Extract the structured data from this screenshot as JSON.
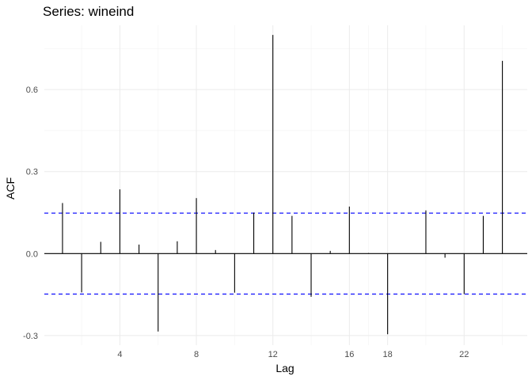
{
  "chart_data": {
    "type": "bar",
    "title": "Series: wineind",
    "xlabel": "Lag",
    "ylabel": "ACF",
    "x": [
      1,
      2,
      3,
      4,
      5,
      6,
      7,
      8,
      9,
      10,
      11,
      12,
      13,
      14,
      15,
      16,
      17,
      18,
      19,
      20,
      21,
      22,
      23,
      24
    ],
    "values": [
      0.185,
      -0.142,
      0.043,
      0.235,
      0.033,
      -0.285,
      0.045,
      0.203,
      0.013,
      -0.143,
      0.15,
      0.8,
      0.138,
      -0.158,
      0.01,
      0.172,
      0.002,
      -0.295,
      0.0,
      0.158,
      -0.015,
      -0.148,
      0.138,
      0.705
    ],
    "ci": 0.148,
    "xticks": [
      4,
      8,
      12,
      16,
      18,
      22
    ],
    "yticks": [
      -0.3,
      0.0,
      0.3,
      0.6
    ],
    "ytick_labels": [
      "-0.3",
      "0.0",
      "0.3",
      "0.6"
    ],
    "xlim": [
      0.05,
      25.3
    ],
    "ylim": [
      -0.335,
      0.835
    ],
    "grid": true
  }
}
